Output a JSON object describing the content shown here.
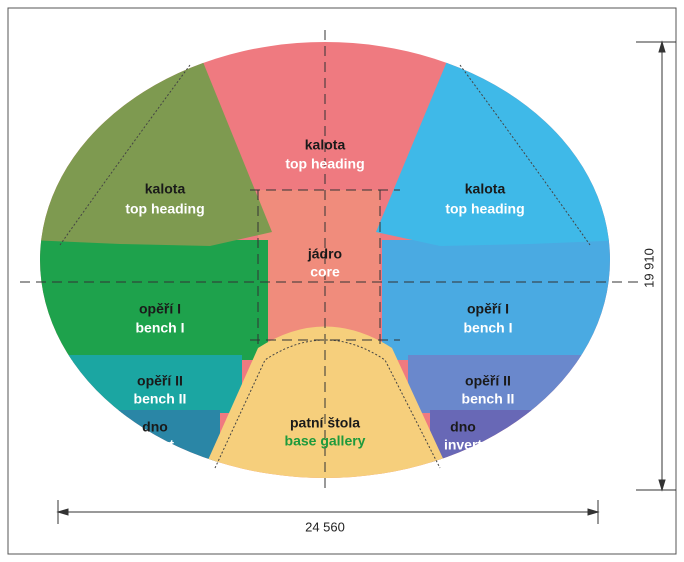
{
  "regions": [
    {
      "czech": "kalota",
      "english": "top heading"
    },
    {
      "czech": "kalota",
      "english": "top heading"
    },
    {
      "czech": "kalota",
      "english": "top heading"
    },
    {
      "czech": "jádro",
      "english": "core"
    },
    {
      "czech": "opěří I",
      "english": "bench I"
    },
    {
      "czech": "opěří I",
      "english": "bench I"
    },
    {
      "czech": "opěří II",
      "english": "bench II"
    },
    {
      "czech": "opěří II",
      "english": "bench II"
    },
    {
      "czech": "dno",
      "english": "invert"
    },
    {
      "czech": "dno",
      "english": "invert"
    },
    {
      "czech": "patní štola",
      "english": "base gallery"
    }
  ],
  "dimensions": {
    "width": "24 560",
    "height": "19 910"
  }
}
